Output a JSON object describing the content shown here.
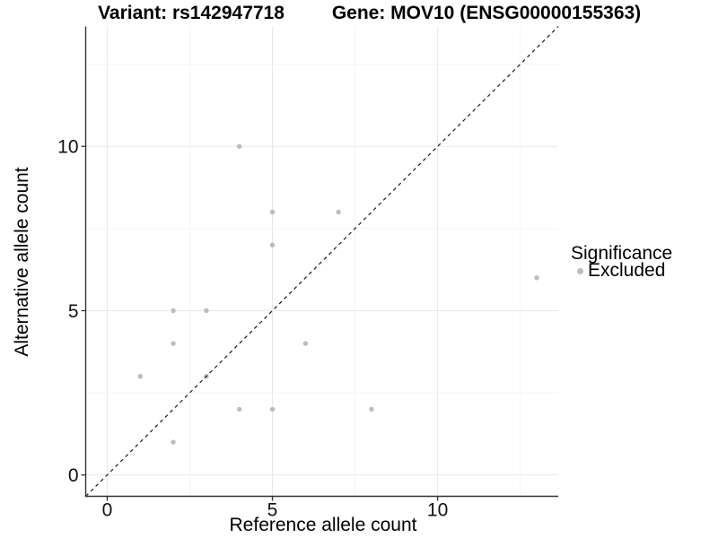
{
  "chart_data": {
    "type": "scatter",
    "titles": {
      "left": "Variant: rs142947718",
      "right": "Gene: MOV10 (ENSG00000155363)"
    },
    "xlabel": "Reference allele count",
    "ylabel": "Alternative allele count",
    "xlim": [
      -0.65,
      13.65
    ],
    "ylim": [
      -0.65,
      13.65
    ],
    "major_ticks": [
      0,
      5,
      10
    ],
    "minor_gridlines": [
      2.5,
      7.5,
      12.5
    ],
    "grid": "on",
    "legend": {
      "title": "Significance",
      "position": "right",
      "items": [
        {
          "label": "Excluded",
          "marker_color": "#bcbcbc"
        }
      ]
    },
    "reference_line": {
      "type": "identity",
      "style": "dashed",
      "color": "#1a1a1a"
    },
    "series": [
      {
        "name": "Excluded",
        "marker_color": "#bcbcbc",
        "points": [
          [
            1,
            3
          ],
          [
            2,
            1
          ],
          [
            2,
            4
          ],
          [
            2,
            5
          ],
          [
            3,
            3
          ],
          [
            3,
            5
          ],
          [
            4,
            2
          ],
          [
            4,
            10
          ],
          [
            5,
            2
          ],
          [
            5,
            7
          ],
          [
            5,
            8
          ],
          [
            6,
            4
          ],
          [
            7,
            8
          ],
          [
            8,
            2
          ],
          [
            13,
            6
          ]
        ]
      }
    ],
    "colors": {
      "major_grid": "#e8e8e8",
      "minor_grid": "#f4f4f4",
      "axis_line": "#333333",
      "tick_text": "#111111"
    }
  }
}
